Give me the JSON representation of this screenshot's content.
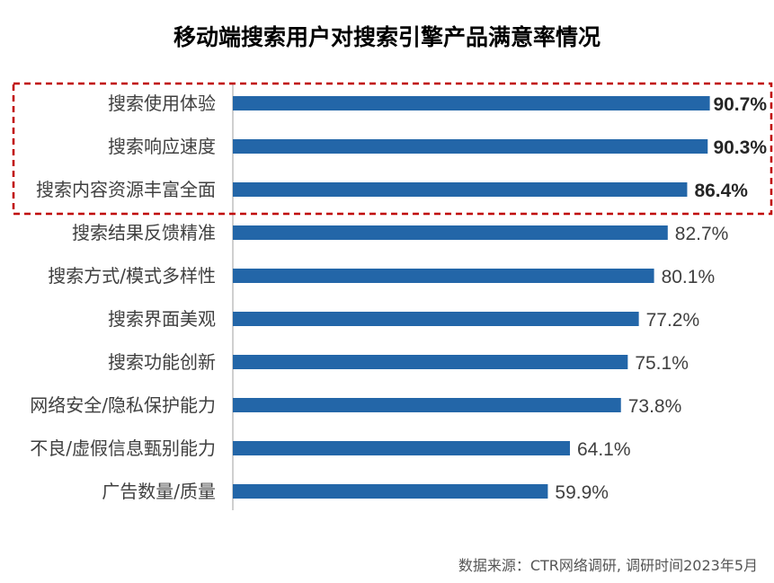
{
  "chart_data": {
    "type": "bar",
    "orientation": "horizontal",
    "title": "移动端搜索用户对搜索引擎产品满意率情况",
    "categories": [
      "搜索使用体验",
      "搜索响应速度",
      "搜索内容资源丰富全面",
      "搜索结果反馈精准",
      "搜索方式/模式多样性",
      "搜索界面美观",
      "搜索功能创新",
      "网络安全/隐私保护能力",
      "不良/虚假信息甄别能力",
      "广告数量/质量"
    ],
    "values": [
      90.7,
      90.3,
      86.4,
      82.7,
      80.1,
      77.2,
      75.1,
      73.8,
      64.1,
      59.9
    ],
    "value_labels": [
      "90.7%",
      "90.3%",
      "86.4%",
      "82.7%",
      "80.1%",
      "77.2%",
      "75.1%",
      "73.8%",
      "64.1%",
      "59.9%"
    ],
    "highlighted_count": 3,
    "xlim": [
      0,
      100
    ],
    "bar_color": "#2366A8",
    "highlight_border_color": "#C00000",
    "source": "数据来源：CTR网络调研, 调研时间2023年5月"
  }
}
